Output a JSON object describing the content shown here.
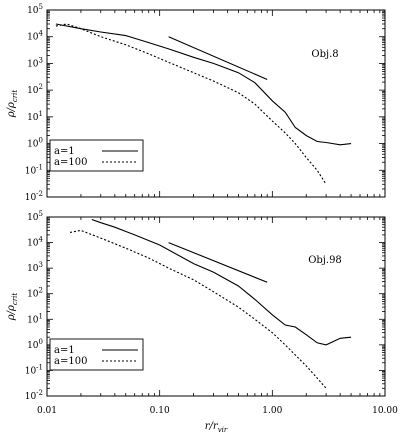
{
  "chart_data": [
    {
      "type": "line",
      "annotation": "Obj.8",
      "xlabel": "",
      "ylabel": "ρ/ρ_crit",
      "xscale": "log",
      "yscale": "log",
      "xlim": [
        0.01,
        10
      ],
      "ylim": [
        0.01,
        100000
      ],
      "yticks": [
        "10^{5}",
        "10^{4}",
        "10^{3}",
        "10^{2}",
        "10^{1}",
        "10^{0}",
        "10^{-1}",
        "10^{-2}"
      ],
      "xticks": [],
      "legend_position": "bottom-left",
      "series": [
        {
          "name": "a=1",
          "style": "solid",
          "x": [
            0.012,
            0.02,
            0.03,
            0.05,
            0.08,
            0.12,
            0.2,
            0.3,
            0.5,
            0.7,
            1.0,
            1.3,
            1.6,
            2.0,
            2.5,
            3.0,
            4.0,
            5.0
          ],
          "y": [
            30000,
            20000,
            15000,
            11000,
            6000,
            3500,
            1700,
            1000,
            450,
            190,
            40,
            15,
            4,
            2,
            1.2,
            1.1,
            0.9,
            1.0
          ]
        },
        {
          "name": "a=100",
          "style": "dotted",
          "x": [
            0.012,
            0.015,
            0.02,
            0.03,
            0.05,
            0.08,
            0.12,
            0.2,
            0.3,
            0.5,
            0.7,
            1.0,
            1.3,
            1.6,
            2.0,
            2.5,
            3.0
          ],
          "y": [
            25000,
            30000,
            20000,
            10000,
            5000,
            2300,
            1100,
            450,
            220,
            80,
            30,
            7,
            2.5,
            1.0,
            0.3,
            0.1,
            0.03
          ]
        },
        {
          "name": "",
          "style": "solid-reference",
          "x": [
            0.12,
            0.9
          ],
          "y": [
            10000,
            250
          ]
        }
      ]
    },
    {
      "type": "line",
      "annotation": "Obj.98",
      "xlabel": "r/r_vir",
      "ylabel": "ρ/ρ_crit",
      "xscale": "log",
      "yscale": "log",
      "xlim": [
        0.01,
        10
      ],
      "ylim": [
        0.01,
        100000
      ],
      "yticks": [
        "10^{5}",
        "10^{4}",
        "10^{3}",
        "10^{2}",
        "10^{1}",
        "10^{0}",
        "10^{-1}",
        "10^{-2}"
      ],
      "xticks": [
        "0.01",
        "0.10",
        "1.00",
        "10.00"
      ],
      "legend_position": "bottom-left",
      "series": [
        {
          "name": "a=1",
          "style": "solid",
          "x": [
            0.025,
            0.03,
            0.04,
            0.06,
            0.1,
            0.15,
            0.2,
            0.3,
            0.5,
            0.7,
            1.0,
            1.3,
            1.6,
            2.0,
            2.5,
            3.0,
            4.0,
            5.0
          ],
          "y": [
            80000,
            60000,
            40000,
            20000,
            8000,
            3000,
            1500,
            700,
            200,
            60,
            15,
            6,
            5,
            2.5,
            1.2,
            1.0,
            1.8,
            2.0
          ]
        },
        {
          "name": "a=100",
          "style": "dotted",
          "x": [
            0.016,
            0.02,
            0.03,
            0.05,
            0.08,
            0.12,
            0.2,
            0.3,
            0.5,
            0.7,
            1.0,
            1.3,
            1.6,
            2.0,
            2.5,
            3.0
          ],
          "y": [
            25000,
            30000,
            15000,
            6000,
            2500,
            1000,
            350,
            120,
            30,
            10,
            3,
            1.0,
            0.4,
            0.15,
            0.05,
            0.02
          ]
        },
        {
          "name": "",
          "style": "solid-reference",
          "x": [
            0.12,
            0.9
          ],
          "y": [
            10000,
            280
          ]
        }
      ]
    }
  ]
}
